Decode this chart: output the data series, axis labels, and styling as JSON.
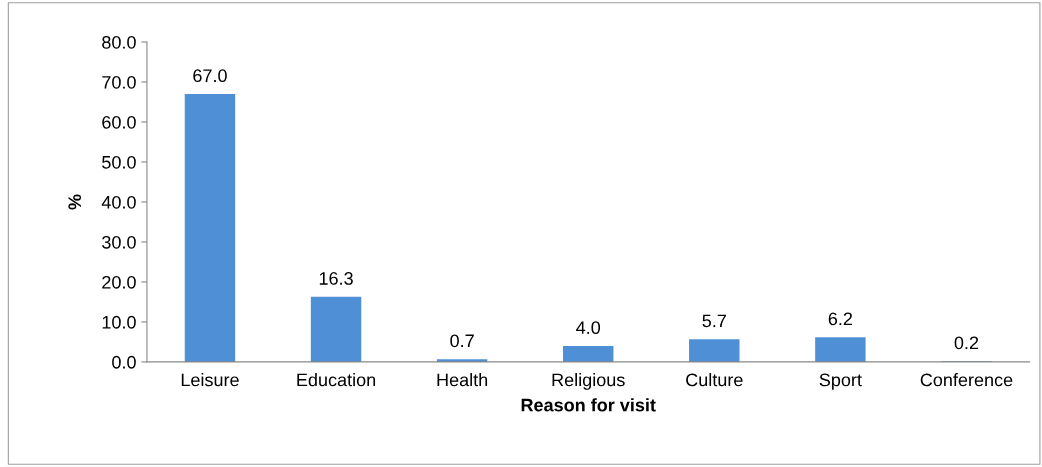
{
  "chart_data": {
    "type": "bar",
    "xlabel": "Reason for visit",
    "ylabel": "%",
    "categories": [
      "Leisure",
      "Education",
      "Health",
      "Religious",
      "Culture",
      "Sport",
      "Conference"
    ],
    "values": [
      67.0,
      16.3,
      0.7,
      4.0,
      5.7,
      6.2,
      0.2
    ],
    "value_labels": [
      "67.0",
      "16.3",
      "0.7",
      "4.0",
      "5.7",
      "6.2",
      "0.2"
    ],
    "color": "#4f8fd6",
    "ylim": [
      0,
      80
    ],
    "yticks": [
      {
        "value": 0,
        "label": "0.0"
      },
      {
        "value": 10,
        "label": "10.0"
      },
      {
        "value": 20,
        "label": "20.0"
      },
      {
        "value": 30,
        "label": "30.0"
      },
      {
        "value": 40,
        "label": "40.0"
      },
      {
        "value": 50,
        "label": "50.0"
      },
      {
        "value": 60,
        "label": "60.0"
      },
      {
        "value": 70,
        "label": "70.0"
      },
      {
        "value": 80,
        "label": "80.0"
      }
    ],
    "grid": false,
    "legend": false
  }
}
